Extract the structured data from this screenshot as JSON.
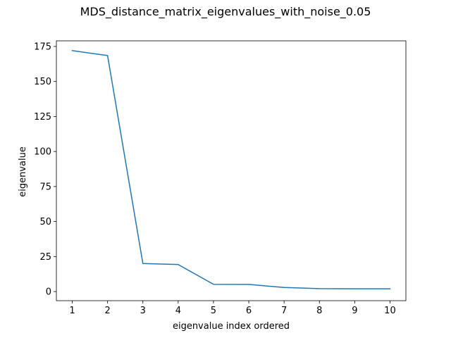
{
  "chart_data": {
    "type": "line",
    "title": "MDS_distance_matrix_eigenvalues_with_noise_0.05",
    "xlabel": "eigenvalue index ordered",
    "ylabel": "eigenvalue",
    "x": [
      1,
      2,
      3,
      4,
      5,
      6,
      7,
      8,
      9,
      10
    ],
    "series": [
      {
        "values": [
          172.0,
          168.5,
          20.0,
          19.3,
          5.2,
          5.1,
          2.9,
          2.1,
          2.0,
          2.0
        ],
        "color": "#1f77b4"
      }
    ],
    "xlim": [
      0.55,
      10.45
    ],
    "ylim": [
      -6.5,
      179
    ],
    "xticks": [
      1,
      2,
      3,
      4,
      5,
      6,
      7,
      8,
      9,
      10
    ],
    "yticks": [
      0,
      25,
      50,
      75,
      100,
      125,
      150,
      175
    ],
    "grid": false,
    "legend": "none"
  }
}
